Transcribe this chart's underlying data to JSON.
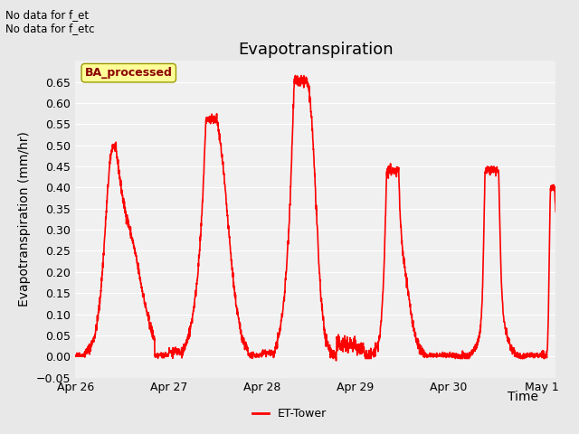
{
  "title": "Evapotranspiration",
  "ylabel": "Evapotranspiration (mm/hr)",
  "xlabel": "Time",
  "ylim": [
    -0.05,
    0.7
  ],
  "yticks": [
    -0.05,
    0.0,
    0.05,
    0.1,
    0.15,
    0.2,
    0.25,
    0.3,
    0.35,
    0.4,
    0.45,
    0.5,
    0.55,
    0.6,
    0.65
  ],
  "line_color": "#ff0000",
  "line_width": 1.2,
  "bg_color": "#e8e8e8",
  "plot_bg_color": "#f0f0f0",
  "annotation_text": "No data for f_et\nNo data for f_etc",
  "legend_label": "ET-Tower",
  "legend_box_text": "BA_processed",
  "title_fontsize": 13,
  "label_fontsize": 10,
  "tick_fontsize": 9,
  "x_tick_labels": [
    "Apr 26",
    "Apr 27",
    "Apr 28",
    "Apr 29",
    "Apr 30",
    "May 1"
  ],
  "x_tick_positions": [
    0.0,
    1.0,
    2.0,
    3.0,
    4.0,
    5.0
  ]
}
